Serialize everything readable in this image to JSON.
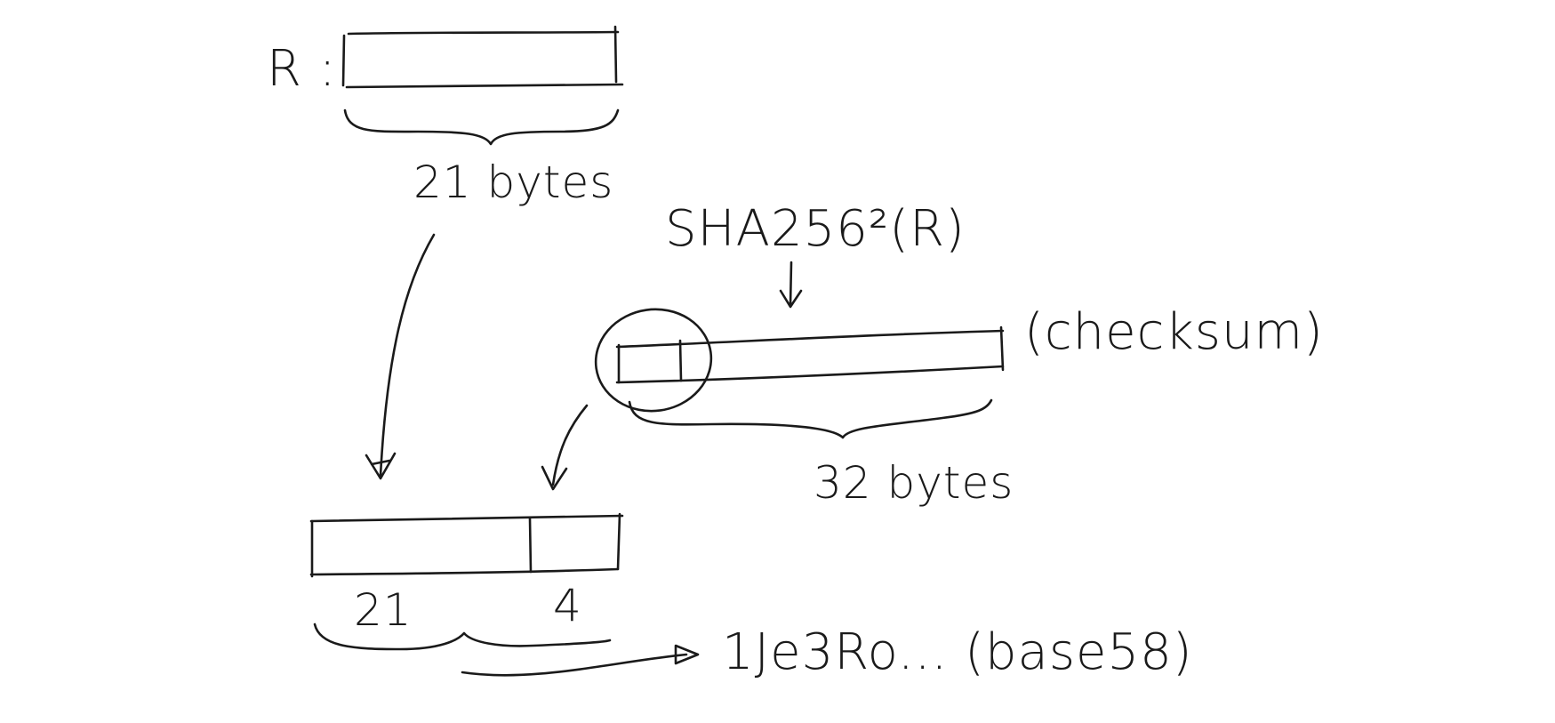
{
  "labels": {
    "r_label": "R :",
    "r_size": "21 bytes",
    "hash_label": "SHA256²(R)",
    "checksum_label": "(checksum)",
    "hash_size": "32 bytes",
    "out_left_size": "21",
    "out_right_size": "4",
    "encoded": "1Je3Ro... (base58)"
  }
}
